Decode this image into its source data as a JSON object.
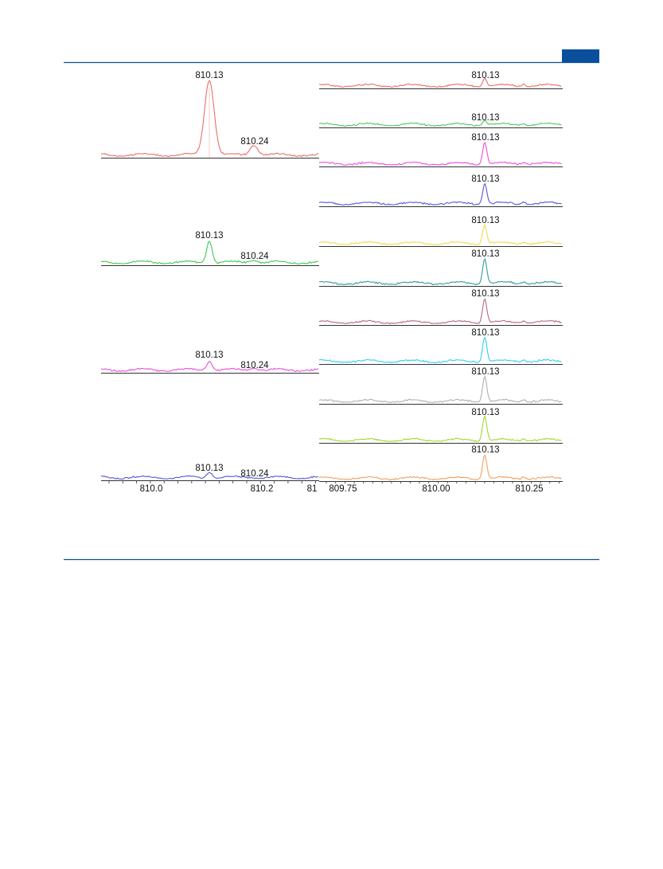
{
  "figure": {
    "left": {
      "panels": [
        {
          "color": "#e8706a",
          "peak_label": "810.13",
          "minor_label": "810.24"
        },
        {
          "color": "#40c850",
          "peak_label": "810.13",
          "minor_label": "810.24"
        },
        {
          "color": "#e850e0",
          "peak_label": "810.13",
          "minor_label": "810.24"
        },
        {
          "color": "#5858d8",
          "peak_label": "810.13",
          "minor_label": "810.24"
        }
      ],
      "axis_ticks": [
        "810.0",
        "810.2",
        "81"
      ]
    },
    "right": {
      "panels": [
        {
          "color": "#e8706a",
          "peak_label": "810.13"
        },
        {
          "color": "#50c860",
          "peak_label": "810.13"
        },
        {
          "color": "#e850e0",
          "peak_label": "810.13"
        },
        {
          "color": "#5858d8",
          "peak_label": "810.13"
        },
        {
          "color": "#f0d850",
          "peak_label": "810.13"
        },
        {
          "color": "#309c9c",
          "peak_label": "810.13"
        },
        {
          "color": "#b86880",
          "peak_label": "810.13"
        },
        {
          "color": "#30d0f0",
          "peak_label": "810.13"
        },
        {
          "color": "#b0b0b0",
          "peak_label": "810.13"
        },
        {
          "color": "#a0d830",
          "peak_label": "810.13"
        },
        {
          "color": "#f0a060",
          "peak_label": "810.13"
        }
      ],
      "axis_ticks": [
        "809.75",
        "810.00",
        "810.25"
      ]
    }
  }
}
